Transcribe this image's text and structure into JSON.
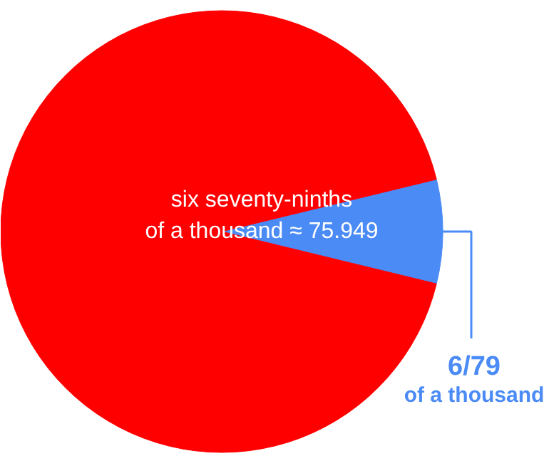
{
  "chart_data": {
    "type": "pie",
    "categories": [
      null,
      "6/79\nof a thousand"
    ],
    "values": [
      92.4051,
      7.5949
    ],
    "colors": [
      "#ff0000",
      "#4b8bf5"
    ],
    "annotations": [
      "six seventy-ninths\nof a thousand ≈ 75.949"
    ]
  }
}
